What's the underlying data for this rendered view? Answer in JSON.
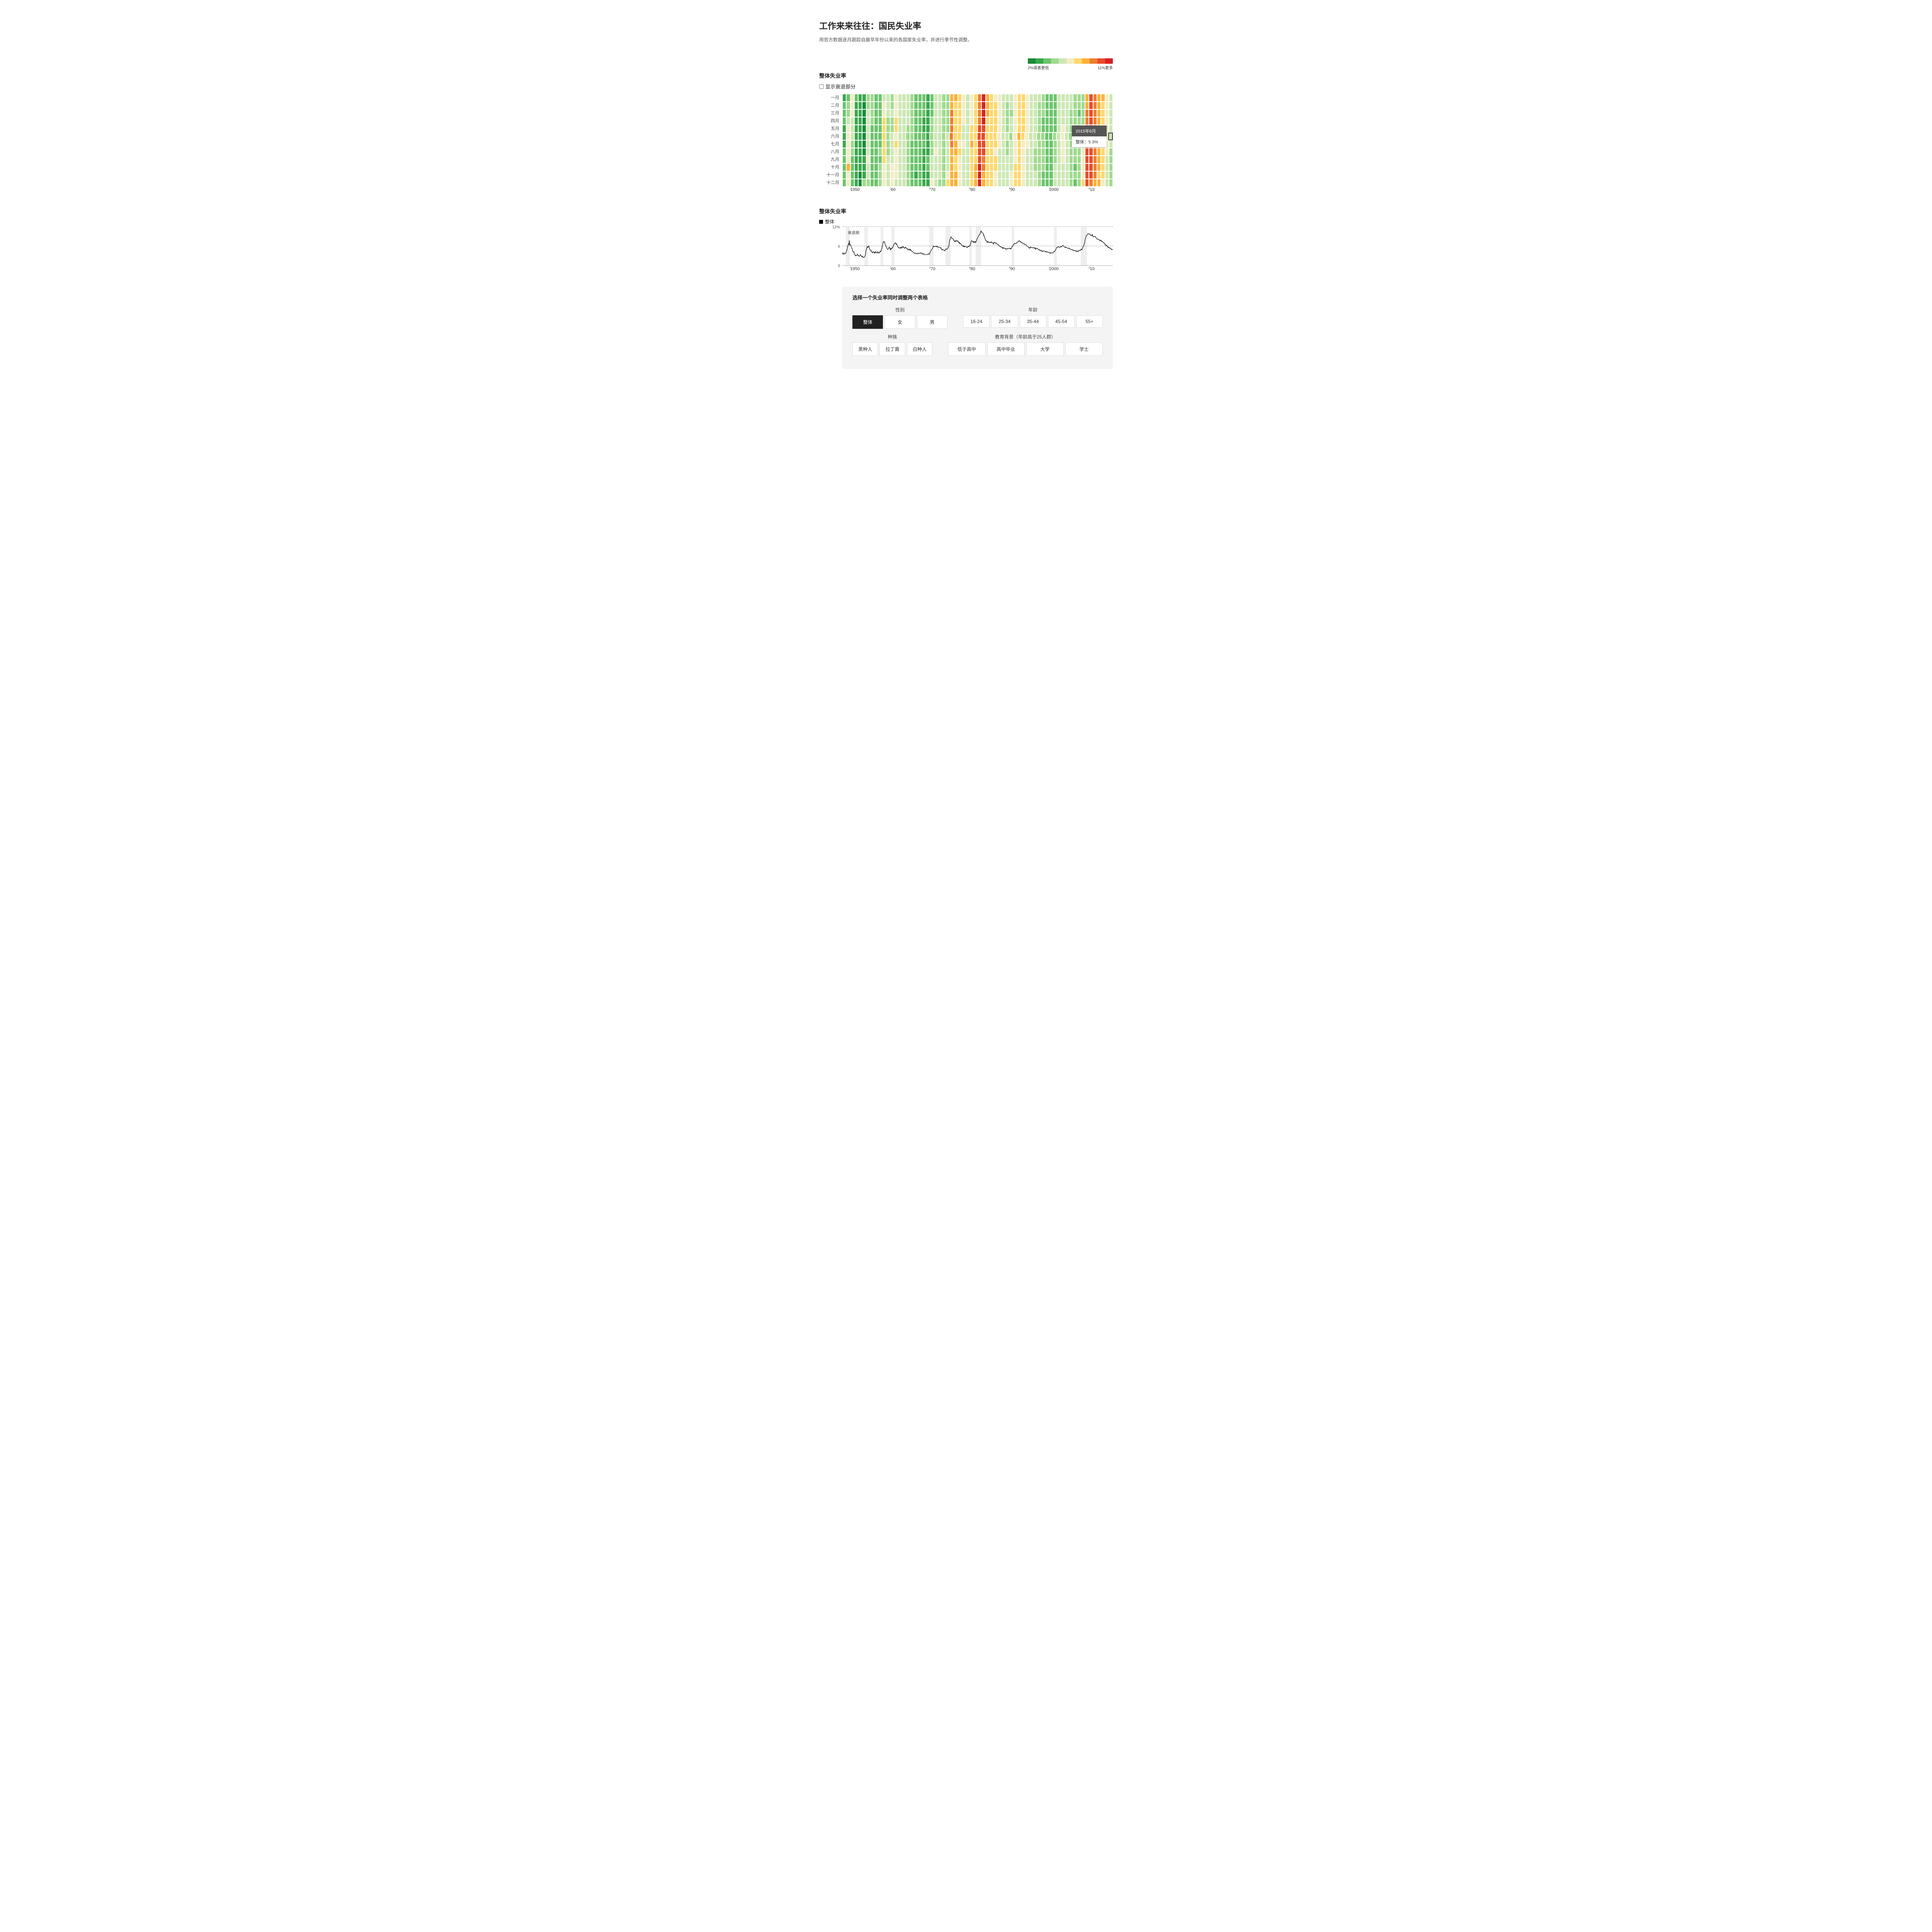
{
  "title": "工作来来往往：国民失业率",
  "subtitle": "用官方数据逐月跟踪自最早年份以来的各国家失业率，并进行季节性调整。",
  "heatmap": {
    "type": "heatmap",
    "section_title": "整体失业率",
    "checkbox_label": "显示衰退部分",
    "months": [
      "一月",
      "二月",
      "三月",
      "四月",
      "五月",
      "六月",
      "七月",
      "八月",
      "九月",
      "十月",
      "十一月",
      "十二月"
    ],
    "year_start": 1948,
    "year_end": 2015,
    "x_ticks": [
      {
        "year": 1950,
        "label": "1950"
      },
      {
        "year": 1960,
        "label": "'60"
      },
      {
        "year": 1970,
        "label": "'70"
      },
      {
        "year": 1980,
        "label": "'80"
      },
      {
        "year": 1990,
        "label": "'90"
      },
      {
        "year": 2000,
        "label": "2000"
      },
      {
        "year": 2010,
        "label": "'10"
      }
    ],
    "legend": {
      "colors": [
        "#1a8c3a",
        "#3aa84d",
        "#6cc46c",
        "#a0da8f",
        "#cde8b5",
        "#f2edc5",
        "#fdd96b",
        "#fcb23a",
        "#f07e2c",
        "#e84b2c",
        "#d62222"
      ],
      "low_label": "2%或者更低",
      "high_label": "11%更多"
    },
    "color_scale_min": 2.0,
    "color_scale_max": 11.0,
    "cell_border": "#ffffff",
    "highlight_border": "#333333",
    "tooltip": {
      "year": 2015,
      "month_index": 5,
      "head": "2015年6月",
      "body": "整体：5.3%"
    },
    "values": [
      [
        3.4,
        3.8,
        4.0,
        3.9,
        3.5,
        3.6,
        3.6,
        3.9,
        3.8,
        3.7,
        3.8,
        4.0
      ],
      [
        4.3,
        4.7,
        5.0,
        5.3,
        6.1,
        6.2,
        6.7,
        6.8,
        6.6,
        7.9,
        6.4,
        6.6
      ],
      [
        6.5,
        6.4,
        6.3,
        5.8,
        5.5,
        5.4,
        5.0,
        4.5,
        4.4,
        4.2,
        4.2,
        4.3
      ],
      [
        3.7,
        3.4,
        3.4,
        3.1,
        3.0,
        3.2,
        3.1,
        3.1,
        3.3,
        3.5,
        3.5,
        3.1
      ],
      [
        3.2,
        3.1,
        2.9,
        2.9,
        3.0,
        3.0,
        3.2,
        3.4,
        3.1,
        3.0,
        2.8,
        2.7
      ],
      [
        2.9,
        2.6,
        2.6,
        2.7,
        2.5,
        2.5,
        2.6,
        2.7,
        2.9,
        3.1,
        3.5,
        4.5
      ],
      [
        4.9,
        5.2,
        5.7,
        5.9,
        5.9,
        5.6,
        5.8,
        6.0,
        6.1,
        5.7,
        5.3,
        5.0
      ],
      [
        4.9,
        4.7,
        4.6,
        4.7,
        4.3,
        4.2,
        4.0,
        4.2,
        4.1,
        4.3,
        4.2,
        4.2
      ],
      [
        4.0,
        3.9,
        4.2,
        3.9,
        4.3,
        4.3,
        4.2,
        4.1,
        3.9,
        3.9,
        4.3,
        4.2
      ],
      [
        4.2,
        3.9,
        4.0,
        3.9,
        4.1,
        4.3,
        4.2,
        4.5,
        4.4,
        4.5,
        5.1,
        5.2
      ],
      [
        5.8,
        6.4,
        6.7,
        7.4,
        7.4,
        7.3,
        7.5,
        7.4,
        7.1,
        6.7,
        6.2,
        6.2
      ],
      [
        6.0,
        5.9,
        5.6,
        5.2,
        5.1,
        5.0,
        5.1,
        5.2,
        5.5,
        5.7,
        5.8,
        5.3
      ],
      [
        5.2,
        4.8,
        5.4,
        5.2,
        5.1,
        5.4,
        5.5,
        5.6,
        5.5,
        6.1,
        6.1,
        6.6
      ],
      [
        6.6,
        6.9,
        6.9,
        7.0,
        7.1,
        6.9,
        7.0,
        6.6,
        6.7,
        6.5,
        6.1,
        6.0
      ],
      [
        5.8,
        5.5,
        5.6,
        5.6,
        5.5,
        5.5,
        5.4,
        5.7,
        5.6,
        5.4,
        5.7,
        5.5
      ],
      [
        5.7,
        5.9,
        5.7,
        5.7,
        5.9,
        5.6,
        5.6,
        5.4,
        5.5,
        5.5,
        5.7,
        5.5
      ],
      [
        5.6,
        5.4,
        5.4,
        5.3,
        5.1,
        5.2,
        4.9,
        5.0,
        5.1,
        5.1,
        4.8,
        5.0
      ],
      [
        4.9,
        5.1,
        4.7,
        4.8,
        4.6,
        4.6,
        4.4,
        4.4,
        4.3,
        4.2,
        4.1,
        4.0
      ],
      [
        4.0,
        3.8,
        3.8,
        3.8,
        3.9,
        3.8,
        3.8,
        3.8,
        3.7,
        3.7,
        3.6,
        3.8
      ],
      [
        3.9,
        3.8,
        3.8,
        3.8,
        3.8,
        3.9,
        3.8,
        3.8,
        3.8,
        4.0,
        3.9,
        3.8
      ],
      [
        3.7,
        3.8,
        3.7,
        3.5,
        3.5,
        3.7,
        3.7,
        3.5,
        3.4,
        3.4,
        3.4,
        3.4
      ],
      [
        3.4,
        3.4,
        3.4,
        3.4,
        3.4,
        3.5,
        3.5,
        3.5,
        3.7,
        3.7,
        3.5,
        3.5
      ],
      [
        3.9,
        4.2,
        4.4,
        4.6,
        4.8,
        4.9,
        5.0,
        5.1,
        5.4,
        5.5,
        5.9,
        6.1
      ],
      [
        5.9,
        5.9,
        6.0,
        5.9,
        5.9,
        5.9,
        6.0,
        6.1,
        6.0,
        5.8,
        6.0,
        6.0
      ],
      [
        5.8,
        5.7,
        5.8,
        5.7,
        5.7,
        5.7,
        5.6,
        5.6,
        5.5,
        5.6,
        5.3,
        5.2
      ],
      [
        4.9,
        5.0,
        4.9,
        5.0,
        4.9,
        4.9,
        4.8,
        4.8,
        4.8,
        4.6,
        4.8,
        4.9
      ],
      [
        5.1,
        5.2,
        5.1,
        5.1,
        5.1,
        5.4,
        5.5,
        5.5,
        5.9,
        6.0,
        6.6,
        7.2
      ],
      [
        8.1,
        8.1,
        8.6,
        8.8,
        9.0,
        8.8,
        8.6,
        8.4,
        8.4,
        8.4,
        8.3,
        8.2
      ],
      [
        7.9,
        7.7,
        7.6,
        7.7,
        7.4,
        7.6,
        7.8,
        7.8,
        7.6,
        7.7,
        7.8,
        7.8
      ],
      [
        7.5,
        7.6,
        7.4,
        7.2,
        7.0,
        7.2,
        6.9,
        7.0,
        6.8,
        6.8,
        6.8,
        6.4
      ],
      [
        6.4,
        6.3,
        6.3,
        6.1,
        6.0,
        5.9,
        6.2,
        5.9,
        6.0,
        5.8,
        5.9,
        6.0
      ],
      [
        5.9,
        5.9,
        5.8,
        5.8,
        5.6,
        5.7,
        5.7,
        6.0,
        5.9,
        6.0,
        5.9,
        6.0
      ],
      [
        6.3,
        6.3,
        6.3,
        6.9,
        7.5,
        7.6,
        7.8,
        7.7,
        7.5,
        7.5,
        7.5,
        7.2
      ],
      [
        7.5,
        7.4,
        7.4,
        7.2,
        7.5,
        7.5,
        7.2,
        7.4,
        7.6,
        7.9,
        8.3,
        8.5
      ],
      [
        8.6,
        8.9,
        9.0,
        9.3,
        9.4,
        9.6,
        9.8,
        9.8,
        10.1,
        10.4,
        10.8,
        10.8
      ],
      [
        10.4,
        10.4,
        10.3,
        10.2,
        10.1,
        10.1,
        9.4,
        9.5,
        9.2,
        8.8,
        8.5,
        8.3
      ],
      [
        8.0,
        7.8,
        7.8,
        7.7,
        7.4,
        7.2,
        7.5,
        7.5,
        7.3,
        7.4,
        7.2,
        7.3
      ],
      [
        7.3,
        7.2,
        7.2,
        7.3,
        7.2,
        7.4,
        7.4,
        7.1,
        7.1,
        7.1,
        7.0,
        7.0
      ],
      [
        6.7,
        7.2,
        7.2,
        7.1,
        7.2,
        7.2,
        7.0,
        6.9,
        7.0,
        7.0,
        6.9,
        6.6
      ],
      [
        6.6,
        6.6,
        6.6,
        6.3,
        6.3,
        6.2,
        6.1,
        6.0,
        5.9,
        6.0,
        5.8,
        5.7
      ],
      [
        5.7,
        5.7,
        5.7,
        5.4,
        5.6,
        5.4,
        5.4,
        5.6,
        5.4,
        5.4,
        5.3,
        5.3
      ],
      [
        5.4,
        5.2,
        5.0,
        5.2,
        5.2,
        5.3,
        5.2,
        5.2,
        5.3,
        5.3,
        5.4,
        5.4
      ],
      [
        5.4,
        5.3,
        5.2,
        5.4,
        5.4,
        5.2,
        5.5,
        5.7,
        5.9,
        5.9,
        6.2,
        6.3
      ],
      [
        6.4,
        6.6,
        6.8,
        6.7,
        6.9,
        6.9,
        6.8,
        6.9,
        6.9,
        7.0,
        7.0,
        7.3
      ],
      [
        7.3,
        7.4,
        7.4,
        7.4,
        7.6,
        7.8,
        7.7,
        7.6,
        7.6,
        7.3,
        7.4,
        7.4
      ],
      [
        7.3,
        7.1,
        7.0,
        7.1,
        7.1,
        7.0,
        6.9,
        6.8,
        6.7,
        6.8,
        6.6,
        6.5
      ],
      [
        6.6,
        6.6,
        6.5,
        6.4,
        6.1,
        6.1,
        6.1,
        6.0,
        5.9,
        5.8,
        5.6,
        5.5
      ],
      [
        5.6,
        5.4,
        5.4,
        5.8,
        5.6,
        5.6,
        5.7,
        5.7,
        5.6,
        5.5,
        5.6,
        5.6
      ],
      [
        5.6,
        5.5,
        5.5,
        5.6,
        5.6,
        5.3,
        5.5,
        5.1,
        5.2,
        5.2,
        5.4,
        5.4
      ],
      [
        5.3,
        5.2,
        5.2,
        5.1,
        4.9,
        5.0,
        4.9,
        4.8,
        4.9,
        4.7,
        4.6,
        4.7
      ],
      [
        4.6,
        4.6,
        4.7,
        4.3,
        4.4,
        4.5,
        4.5,
        4.5,
        4.6,
        4.5,
        4.4,
        4.4
      ],
      [
        4.3,
        4.4,
        4.2,
        4.3,
        4.2,
        4.3,
        4.3,
        4.2,
        4.2,
        4.1,
        4.1,
        4.0
      ],
      [
        4.0,
        4.1,
        4.0,
        3.8,
        4.0,
        4.0,
        4.0,
        3.9,
        3.9,
        3.9,
        3.9,
        3.9
      ],
      [
        4.2,
        4.2,
        4.3,
        4.4,
        4.3,
        4.5,
        4.6,
        4.9,
        5.0,
        5.3,
        5.5,
        5.7
      ],
      [
        5.7,
        5.7,
        5.7,
        5.9,
        5.8,
        5.8,
        5.8,
        5.7,
        5.7,
        5.7,
        5.9,
        6.0
      ],
      [
        5.8,
        5.9,
        5.9,
        6.0,
        6.1,
        6.3,
        6.2,
        6.1,
        6.1,
        6.0,
        5.8,
        5.7
      ],
      [
        5.7,
        5.6,
        5.8,
        5.6,
        5.6,
        5.6,
        5.5,
        5.4,
        5.4,
        5.5,
        5.4,
        5.4
      ],
      [
        5.3,
        5.4,
        5.2,
        5.2,
        5.1,
        5.0,
        5.0,
        4.9,
        5.0,
        5.0,
        5.0,
        4.9
      ],
      [
        4.7,
        4.8,
        4.7,
        4.7,
        4.6,
        4.6,
        4.7,
        4.7,
        4.5,
        4.4,
        4.5,
        4.4
      ],
      [
        4.6,
        4.5,
        4.4,
        4.5,
        4.4,
        4.6,
        4.7,
        4.6,
        4.7,
        4.7,
        4.7,
        5.0
      ],
      [
        5.0,
        4.9,
        5.1,
        5.0,
        5.4,
        5.6,
        5.8,
        6.1,
        6.1,
        6.5,
        6.8,
        7.3
      ],
      [
        7.8,
        8.3,
        8.7,
        9.0,
        9.4,
        9.5,
        9.5,
        9.6,
        9.8,
        10.0,
        9.9,
        9.9
      ],
      [
        9.8,
        9.8,
        9.9,
        9.9,
        9.6,
        9.4,
        9.4,
        9.5,
        9.5,
        9.4,
        9.8,
        9.3
      ],
      [
        9.1,
        9.0,
        9.0,
        9.1,
        9.0,
        9.1,
        9.0,
        9.0,
        9.0,
        8.8,
        8.6,
        8.5
      ],
      [
        8.3,
        8.3,
        8.2,
        8.2,
        8.2,
        8.2,
        8.2,
        8.1,
        7.8,
        7.8,
        7.7,
        7.9
      ],
      [
        8.0,
        7.7,
        7.5,
        7.6,
        7.5,
        7.5,
        7.3,
        7.2,
        7.2,
        7.2,
        7.0,
        6.7
      ],
      [
        6.6,
        6.7,
        6.7,
        6.2,
        6.3,
        6.1,
        6.2,
        6.2,
        5.9,
        5.7,
        5.8,
        5.6
      ],
      [
        5.7,
        5.5,
        5.5,
        5.4,
        5.5,
        5.3,
        5.3,
        5.1,
        5.1,
        5.0,
        5.0,
        5.0
      ]
    ]
  },
  "linechart": {
    "type": "line",
    "section_title": "整体失业率",
    "legend_label": "整体",
    "y_max": 12,
    "y_ticks": [
      0,
      6,
      12
    ],
    "y_unit": "%",
    "line_color": "#000000",
    "line_width": 1.2,
    "recession_color": "#eeeeee",
    "recession_label": "衰退期",
    "recessions": [
      {
        "start": 1948.9,
        "end": 1949.8
      },
      {
        "start": 1953.5,
        "end": 1954.4
      },
      {
        "start": 1957.6,
        "end": 1958.3
      },
      {
        "start": 1960.3,
        "end": 1961.1
      },
      {
        "start": 1969.9,
        "end": 1970.9
      },
      {
        "start": 1973.9,
        "end": 1975.2
      },
      {
        "start": 1980.0,
        "end": 1980.5
      },
      {
        "start": 1981.5,
        "end": 1982.9
      },
      {
        "start": 1990.5,
        "end": 1991.2
      },
      {
        "start": 2001.2,
        "end": 2001.9
      },
      {
        "start": 2007.9,
        "end": 2009.5
      }
    ],
    "end_dot": true
  },
  "selector": {
    "title": "选择一个失业率同时调整两个表格",
    "rows": [
      [
        {
          "key": "sex",
          "label": "性别",
          "class": "g-sex",
          "buttons": [
            {
              "key": "overall",
              "label": "整体",
              "active": true
            },
            {
              "key": "female",
              "label": "女"
            },
            {
              "key": "male",
              "label": "男"
            }
          ]
        },
        {
          "key": "age",
          "label": "年龄",
          "class": "g-age",
          "buttons": [
            {
              "key": "16-24",
              "label": "16-24"
            },
            {
              "key": "25-34",
              "label": "25-34"
            },
            {
              "key": "35-44",
              "label": "35-44"
            },
            {
              "key": "45-54",
              "label": "45-54"
            },
            {
              "key": "55+",
              "label": "55+"
            }
          ]
        }
      ],
      [
        {
          "key": "race",
          "label": "种族",
          "class": "g-race",
          "buttons": [
            {
              "key": "black",
              "label": "黑种人"
            },
            {
              "key": "hispanic",
              "label": "拉丁裔"
            },
            {
              "key": "white",
              "label": "白种人"
            }
          ]
        },
        {
          "key": "edu",
          "label": "教育背景（年龄高于25人群）",
          "class": "g-edu",
          "buttons": [
            {
              "key": "lths",
              "label": "低于高中"
            },
            {
              "key": "hs",
              "label": "高中毕业"
            },
            {
              "key": "college",
              "label": "大学"
            },
            {
              "key": "bachelor",
              "label": "学士"
            }
          ]
        }
      ]
    ]
  }
}
